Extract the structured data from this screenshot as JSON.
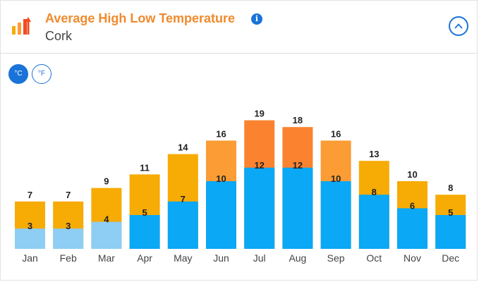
{
  "header": {
    "title": "Average High Low Temperature",
    "subtitle": "Cork",
    "info_glyph": "i"
  },
  "units": {
    "celsius_label": "°C",
    "fahrenheit_label": "°F",
    "selected": "celsius"
  },
  "colors": {
    "accent": "#1a73d9",
    "title": "#f08a2c",
    "low_cold": "#8ecdf4",
    "low": "#0aa8f5",
    "high_mild": "#f7ab05",
    "high_warm": "#fb9c35",
    "high_hot": "#fb8330"
  },
  "chart_data": {
    "type": "bar",
    "categories": [
      "Jan",
      "Feb",
      "Mar",
      "Apr",
      "May",
      "Jun",
      "Jul",
      "Aug",
      "Sep",
      "Oct",
      "Nov",
      "Dec"
    ],
    "series": [
      {
        "values": [
          7,
          7,
          9,
          11,
          14,
          16,
          19,
          18,
          16,
          13,
          10,
          8
        ]
      },
      {
        "values": [
          3,
          3,
          4,
          5,
          7,
          10,
          12,
          12,
          10,
          8,
          6,
          5
        ]
      }
    ],
    "ylim": [
      0,
      19
    ],
    "grid": false,
    "legend": "none"
  }
}
